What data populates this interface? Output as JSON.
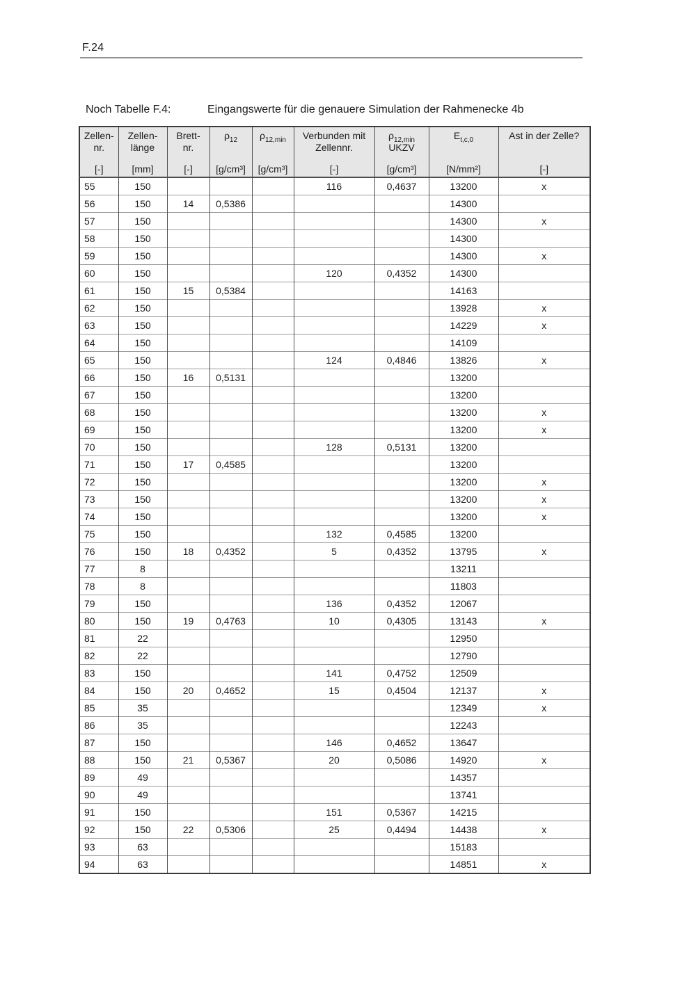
{
  "page": {
    "page_number": "F.24",
    "caption_prefix": "Noch Tabelle F.4:",
    "caption_text": "Eingangswerte für die genauere Simulation der Rahmenecke 4b"
  },
  "style": {
    "header_bg": "#e6e6e6",
    "grid_dark": "#4d4d4d",
    "grid_light": "#9a9a9a"
  },
  "table": {
    "columns": [
      {
        "id": "zellen-nr",
        "line1": "Zellen-",
        "line2": "nr.",
        "unit": "[-]"
      },
      {
        "id": "zellen-laenge",
        "line1": "Zellen-",
        "line2": "länge",
        "unit": "[mm]"
      },
      {
        "id": "brett-nr",
        "line1": "Brett-",
        "line2": "nr.",
        "unit": "[-]"
      },
      {
        "id": "rho12",
        "base": "ρ",
        "sub": "12",
        "unit": "[g/cm³]"
      },
      {
        "id": "rho12min",
        "base": "ρ",
        "sub": "12,min",
        "unit": "[g/cm³]"
      },
      {
        "id": "verbunden-mit-zellennr",
        "line1": "Verbunden mit",
        "line2": "Zellennr.",
        "unit": "[-]"
      },
      {
        "id": "rho12min-ukzv",
        "base": "ρ",
        "sub": "12,min",
        "line2": "UKZV",
        "unit": "[g/cm³]"
      },
      {
        "id": "e-t-c-0",
        "base": "E",
        "sub": "t,c,0",
        "unit": "[N/mm²]"
      },
      {
        "id": "ast-in-der-zelle",
        "line1": "Ast in der Zelle?",
        "unit": "[-]"
      }
    ],
    "rows": [
      [
        "55",
        "150",
        "",
        "",
        "",
        "116",
        "0,4637",
        "13200",
        "x"
      ],
      [
        "56",
        "150",
        "14",
        "0,5386",
        "",
        "",
        "",
        "14300",
        ""
      ],
      [
        "57",
        "150",
        "",
        "",
        "",
        "",
        "",
        "14300",
        "x"
      ],
      [
        "58",
        "150",
        "",
        "",
        "",
        "",
        "",
        "14300",
        ""
      ],
      [
        "59",
        "150",
        "",
        "",
        "",
        "",
        "",
        "14300",
        "x"
      ],
      [
        "60",
        "150",
        "",
        "",
        "",
        "120",
        "0,4352",
        "14300",
        ""
      ],
      [
        "61",
        "150",
        "15",
        "0,5384",
        "",
        "",
        "",
        "14163",
        ""
      ],
      [
        "62",
        "150",
        "",
        "",
        "",
        "",
        "",
        "13928",
        "x"
      ],
      [
        "63",
        "150",
        "",
        "",
        "",
        "",
        "",
        "14229",
        "x"
      ],
      [
        "64",
        "150",
        "",
        "",
        "",
        "",
        "",
        "14109",
        ""
      ],
      [
        "65",
        "150",
        "",
        "",
        "",
        "124",
        "0,4846",
        "13826",
        "x"
      ],
      [
        "66",
        "150",
        "16",
        "0,5131",
        "",
        "",
        "",
        "13200",
        ""
      ],
      [
        "67",
        "150",
        "",
        "",
        "",
        "",
        "",
        "13200",
        ""
      ],
      [
        "68",
        "150",
        "",
        "",
        "",
        "",
        "",
        "13200",
        "x"
      ],
      [
        "69",
        "150",
        "",
        "",
        "",
        "",
        "",
        "13200",
        "x"
      ],
      [
        "70",
        "150",
        "",
        "",
        "",
        "128",
        "0,5131",
        "13200",
        ""
      ],
      [
        "71",
        "150",
        "17",
        "0,4585",
        "",
        "",
        "",
        "13200",
        ""
      ],
      [
        "72",
        "150",
        "",
        "",
        "",
        "",
        "",
        "13200",
        "x"
      ],
      [
        "73",
        "150",
        "",
        "",
        "",
        "",
        "",
        "13200",
        "x"
      ],
      [
        "74",
        "150",
        "",
        "",
        "",
        "",
        "",
        "13200",
        "x"
      ],
      [
        "75",
        "150",
        "",
        "",
        "",
        "132",
        "0,4585",
        "13200",
        ""
      ],
      [
        "76",
        "150",
        "18",
        "0,4352",
        "",
        "5",
        "0,4352",
        "13795",
        "x"
      ],
      [
        "77",
        "8",
        "",
        "",
        "",
        "",
        "",
        "13211",
        ""
      ],
      [
        "78",
        "8",
        "",
        "",
        "",
        "",
        "",
        "11803",
        ""
      ],
      [
        "79",
        "150",
        "",
        "",
        "",
        "136",
        "0,4352",
        "12067",
        ""
      ],
      [
        "80",
        "150",
        "19",
        "0,4763",
        "",
        "10",
        "0,4305",
        "13143",
        "x"
      ],
      [
        "81",
        "22",
        "",
        "",
        "",
        "",
        "",
        "12950",
        ""
      ],
      [
        "82",
        "22",
        "",
        "",
        "",
        "",
        "",
        "12790",
        ""
      ],
      [
        "83",
        "150",
        "",
        "",
        "",
        "141",
        "0,4752",
        "12509",
        ""
      ],
      [
        "84",
        "150",
        "20",
        "0,4652",
        "",
        "15",
        "0,4504",
        "12137",
        "x"
      ],
      [
        "85",
        "35",
        "",
        "",
        "",
        "",
        "",
        "12349",
        "x"
      ],
      [
        "86",
        "35",
        "",
        "",
        "",
        "",
        "",
        "12243",
        ""
      ],
      [
        "87",
        "150",
        "",
        "",
        "",
        "146",
        "0,4652",
        "13647",
        ""
      ],
      [
        "88",
        "150",
        "21",
        "0,5367",
        "",
        "20",
        "0,5086",
        "14920",
        "x"
      ],
      [
        "89",
        "49",
        "",
        "",
        "",
        "",
        "",
        "14357",
        ""
      ],
      [
        "90",
        "49",
        "",
        "",
        "",
        "",
        "",
        "13741",
        ""
      ],
      [
        "91",
        "150",
        "",
        "",
        "",
        "151",
        "0,5367",
        "14215",
        ""
      ],
      [
        "92",
        "150",
        "22",
        "0,5306",
        "",
        "25",
        "0,4494",
        "14438",
        "x"
      ],
      [
        "93",
        "63",
        "",
        "",
        "",
        "",
        "",
        "15183",
        ""
      ],
      [
        "94",
        "63",
        "",
        "",
        "",
        "",
        "",
        "14851",
        "x"
      ]
    ]
  }
}
